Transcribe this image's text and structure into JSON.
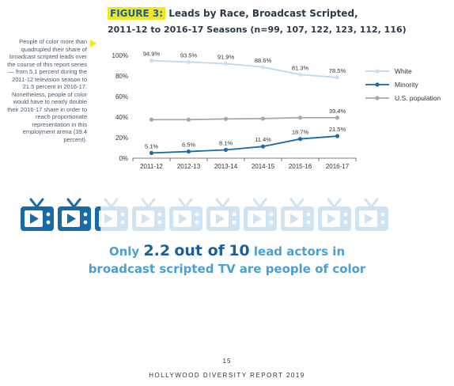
{
  "title": {
    "figure_label": "FIGURE 3:",
    "text": "Leads by Race, Broadcast Scripted,",
    "subtitle": "2011-12 to 2016-17 Seasons (n=99, 107, 122, 123, 112, 116)"
  },
  "side_note": "People of color more than quadrupled their share of broadcast scripted leads over the course of this report series — from 5.1 percent during the 2011-12 television season to 21.5 percent in 2016-17. Nonetheless, people of color would have to nearly double their 2016-17 share in order to reach proportionate representation in this employment arena (39.4 percent).",
  "chart_data": {
    "type": "line",
    "title": "Leads by Race, Broadcast Scripted, 2011-12 to 2016-17 Seasons (n=99, 107, 122, 123, 112, 116)",
    "x": [
      "2011-12",
      "2012-13",
      "2013-14",
      "2014-15",
      "2015-16",
      "2016-17"
    ],
    "y_ticks": [
      "0%",
      "20%",
      "40%",
      "60%",
      "80%",
      "100%"
    ],
    "ylim": [
      0,
      100
    ],
    "legend_position": "right",
    "grid": false,
    "series": [
      {
        "name": "White",
        "color": "#bcd9ee",
        "marker": "#c9e1f2",
        "values": [
          94.9,
          93.5,
          91.9,
          88.6,
          81.3,
          78.5
        ],
        "labels": [
          "94.9%",
          "93.5%",
          "91.9%",
          "88.6%",
          "81.3%",
          "78.5%"
        ]
      },
      {
        "name": "Minority",
        "color": "#1a6aa8",
        "marker": "#1a6aa8",
        "values": [
          5.1,
          6.5,
          8.1,
          11.4,
          18.7,
          21.5
        ],
        "labels": [
          "5.1%",
          "6.5%",
          "8.1%",
          "11.4%",
          "18.7%",
          "21.5%"
        ]
      },
      {
        "name": "U.S. population",
        "color": "#a8a8a8",
        "marker": "#a8a8a8",
        "values": [
          37.5,
          37.5,
          38.2,
          38.5,
          39.4,
          39.4
        ],
        "labels": [
          "",
          "",
          "",
          "",
          "",
          "39.4%"
        ]
      }
    ]
  },
  "infographic": {
    "total": 10,
    "highlighted": 2.2,
    "highlight_color": "#1a6aa8",
    "base_color": "#cfe3f3"
  },
  "stat": {
    "prefix": "Only",
    "number": "2.2",
    "middle": "out of",
    "ten": "10",
    "suffix": "lead actors in",
    "line2": "broadcast scripted TV are people of color"
  },
  "footer": {
    "page_number": "15",
    "report_name": "HOLLYWOOD DIVERSITY REPORT 2019"
  }
}
